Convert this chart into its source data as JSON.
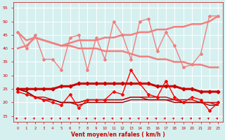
{
  "x": [
    0,
    1,
    2,
    3,
    4,
    5,
    6,
    7,
    8,
    9,
    10,
    11,
    12,
    13,
    14,
    15,
    16,
    17,
    18,
    19,
    20,
    21,
    22,
    23
  ],
  "lines": [
    {
      "y": [
        46,
        40,
        45,
        36,
        36,
        32,
        44,
        45,
        32,
        44,
        36,
        50,
        45,
        36,
        50,
        51,
        39,
        46,
        41,
        33,
        34,
        38,
        52,
        52
      ],
      "color": "#f08080",
      "lw": 1.0,
      "marker": "D",
      "ms": 2.0
    },
    {
      "y": [
        46,
        43,
        44,
        43,
        42,
        41,
        41,
        40,
        40,
        40,
        39,
        39,
        39,
        38,
        37,
        37,
        36,
        36,
        35,
        35,
        34,
        34,
        33,
        33
      ],
      "color": "#f08080",
      "lw": 1.8,
      "marker": null,
      "ms": 0
    },
    {
      "y": [
        40,
        41,
        44,
        43,
        42,
        41,
        42,
        43,
        43,
        43,
        44,
        44,
        45,
        45,
        46,
        46,
        47,
        47,
        48,
        48,
        49,
        49,
        50,
        52
      ],
      "color": "#f08080",
      "lw": 1.8,
      "marker": null,
      "ms": 0
    },
    {
      "y": [
        25,
        25,
        25,
        25,
        25,
        26,
        26,
        27,
        27,
        27,
        27,
        27,
        27,
        27,
        27,
        27,
        26,
        26,
        26,
        25,
        25,
        24,
        24,
        24
      ],
      "color": "#cc0000",
      "lw": 2.2,
      "marker": "D",
      "ms": 2.5
    },
    {
      "y": [
        24,
        23,
        22,
        21,
        20,
        19,
        23,
        18,
        21,
        21,
        21,
        24,
        23,
        32,
        27,
        23,
        22,
        28,
        22,
        20,
        22,
        21,
        17,
        20
      ],
      "color": "#ff0000",
      "lw": 1.0,
      "marker": "D",
      "ms": 2.0
    },
    {
      "y": [
        25,
        24,
        22,
        21,
        21,
        20,
        20,
        20,
        21,
        21,
        21,
        21,
        21,
        22,
        22,
        21,
        21,
        21,
        21,
        20,
        20,
        20,
        20,
        20
      ],
      "color": "#cc0000",
      "lw": 1.0,
      "marker": null,
      "ms": 0
    },
    {
      "y": [
        25,
        24,
        22,
        22,
        21,
        20,
        20,
        20,
        21,
        21,
        21,
        21,
        21,
        22,
        22,
        22,
        22,
        22,
        21,
        21,
        21,
        20,
        20,
        19
      ],
      "color": "#cc0000",
      "lw": 1.0,
      "marker": null,
      "ms": 0
    },
    {
      "y": [
        25,
        24,
        22,
        21,
        21,
        20,
        20,
        19,
        20,
        20,
        20,
        20,
        20,
        21,
        21,
        21,
        21,
        21,
        20,
        20,
        20,
        20,
        19,
        19
      ],
      "color": "#880000",
      "lw": 1.0,
      "marker": null,
      "ms": 0
    }
  ],
  "xlim": [
    -0.5,
    23.5
  ],
  "ylim": [
    13,
    57
  ],
  "yticks": [
    15,
    20,
    25,
    30,
    35,
    40,
    45,
    50,
    55
  ],
  "xticks": [
    0,
    1,
    2,
    3,
    4,
    5,
    6,
    7,
    8,
    9,
    10,
    11,
    12,
    13,
    14,
    15,
    16,
    17,
    18,
    19,
    20,
    21,
    22,
    23
  ],
  "xlabel": "Vent moyen/en rafales ( km/h )",
  "bg_color": "#d6f0f0",
  "grid_color": "#ffffff",
  "tick_color": "#cc0000",
  "label_color": "#cc0000"
}
